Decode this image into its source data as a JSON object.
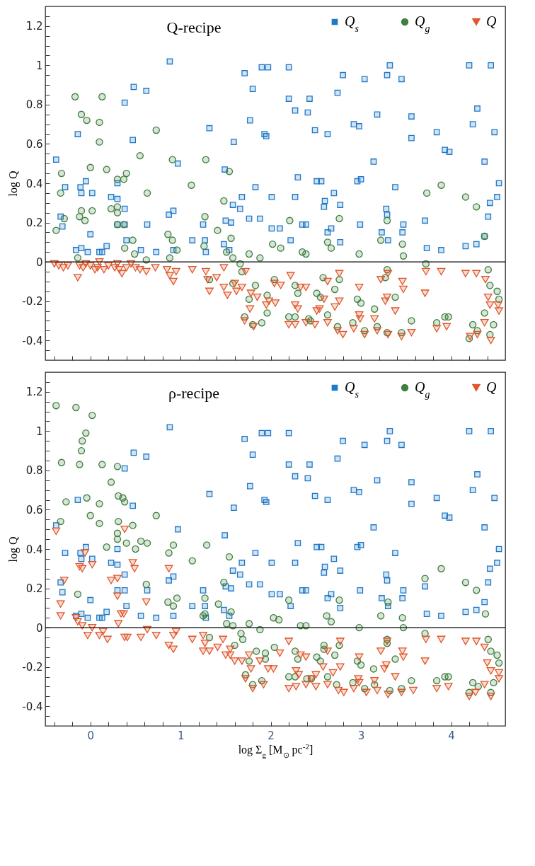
{
  "chart_data": [
    {
      "type": "scatter",
      "title": "Q-recipe",
      "ylabel": "log Q",
      "xlim": [
        -0.5,
        4.6
      ],
      "ylim": [
        -0.5,
        1.3
      ],
      "xticks": [
        {
          "value": -0.4,
          "label": null
        },
        {
          "value": -0.2,
          "label": null
        },
        0,
        {
          "value": 0.2,
          "label": null
        },
        {
          "value": 0.4,
          "label": null
        },
        {
          "value": 0.6,
          "label": null
        },
        {
          "value": 0.8,
          "label": null
        },
        1,
        {
          "value": 1.2,
          "label": null
        },
        {
          "value": 1.4,
          "label": null
        },
        {
          "value": 1.6,
          "label": null
        },
        {
          "value": 1.8,
          "label": null
        },
        2,
        {
          "value": 2.2,
          "label": null
        },
        {
          "value": 2.4,
          "label": null
        },
        {
          "value": 2.6,
          "label": null
        },
        {
          "value": 2.8,
          "label": null
        },
        3,
        {
          "value": 3.2,
          "label": null
        },
        {
          "value": 3.4,
          "label": null
        },
        {
          "value": 3.6,
          "label": null
        },
        {
          "value": 3.8,
          "label": null
        },
        4,
        {
          "value": 4.2,
          "label": null
        },
        {
          "value": 4.4,
          "label": null
        }
      ],
      "yticks": [
        {
          "value": -0.45,
          "label": null
        },
        -0.4,
        {
          "value": -0.35,
          "label": null
        },
        {
          "value": -0.3,
          "label": null
        },
        {
          "value": -0.25,
          "label": null
        },
        -0.2,
        {
          "value": -0.15,
          "label": null
        },
        {
          "value": -0.1,
          "label": null
        },
        {
          "value": -0.05,
          "label": null
        },
        0,
        {
          "value": 0.05,
          "label": null
        },
        {
          "value": 0.1,
          "label": null
        },
        {
          "value": 0.15,
          "label": null
        },
        0.2,
        {
          "value": 0.25,
          "label": null
        },
        {
          "value": 0.3,
          "label": null
        },
        {
          "value": 0.35,
          "label": null
        },
        0.4,
        {
          "value": 0.45,
          "label": null
        },
        {
          "value": 0.5,
          "label": null
        },
        {
          "value": 0.55,
          "label": null
        },
        0.6,
        {
          "value": 0.65,
          "label": null
        },
        {
          "value": 0.7,
          "label": null
        },
        {
          "value": 0.75,
          "label": null
        },
        0.8,
        {
          "value": 0.85,
          "label": null
        },
        {
          "value": 0.9,
          "label": null
        },
        {
          "value": 0.95,
          "label": null
        },
        1,
        {
          "value": 1.05,
          "label": null
        },
        {
          "value": 1.1,
          "label": null
        },
        {
          "value": 1.15,
          "label": null
        },
        1.2,
        {
          "value": 1.25,
          "label": null
        }
      ],
      "tick_labels": "y",
      "legend": "top right",
      "ref_lines": [
        {
          "axis": "y",
          "value": 0,
          "color": "#000000"
        }
      ],
      "series": [
        {
          "name": "Q$_{s}$",
          "color": "#1f78c8",
          "marker": "square",
          "x": [
            -0.38,
            -0.14,
            -0.28,
            -0.11,
            -0.05,
            -0.1,
            0.02,
            -0.33,
            -0.31,
            0,
            -0.16,
            -0.1,
            -0.03,
            0.1,
            0.13,
            0.18,
            0.23,
            0.3,
            0.3,
            0.38,
            0.3,
            0.38,
            0.4,
            0.38,
            0.48,
            0.62,
            0.47,
            0.88,
            0.97,
            0.87,
            0.92,
            0.63,
            0.56,
            0.73,
            0.92,
            1.13,
            1.27,
            1.25,
            1.28,
            1.32,
            1.48,
            1.54,
            1.5,
            1.56,
            1.49,
            1.58,
            1.66,
            1.68,
            1.76,
            1.88,
            1.83,
            1.59,
            1.77,
            1.8,
            1.71,
            1.9,
            1.97,
            1.93,
            1.95,
            2.01,
            2.01,
            2.2,
            3.32,
            4.2,
            4.44,
            2.8,
            3.04,
            3.29,
            3.45,
            2.2,
            2.43,
            2.74,
            2.27,
            2.41,
            3.18,
            3.56,
            4.29,
            2.49,
            2.63,
            2.92,
            2.98,
            3.56,
            3.84,
            4.24,
            4.48,
            3.93,
            3.98,
            3.14,
            4.37,
            2.3,
            2.51,
            2.56,
            2.7,
            2.96,
            3.0,
            3.38,
            4.53,
            4.51,
            4.43,
            2.27,
            2.6,
            2.59,
            2.77,
            3.28,
            3.29,
            3.71,
            4.41,
            2.1,
            2.35,
            2.39,
            2.67,
            2.63,
            2.99,
            3.47,
            3.23,
            3.46,
            2.22,
            2.77,
            3.3,
            3.73,
            3.89,
            4.16,
            4.28,
            4.37
          ],
          "values": [
            0.52,
            0.65,
            0.38,
            0.38,
            0.41,
            0.35,
            0.35,
            0.23,
            0.18,
            0.14,
            0.06,
            0.07,
            0.05,
            0.05,
            0.05,
            0.08,
            0.33,
            0.32,
            0.4,
            0.27,
            0.19,
            0.19,
            0.11,
            0.81,
            0.89,
            0.87,
            0.62,
            1.02,
            0.5,
            0.24,
            0.26,
            0.19,
            0.06,
            0.05,
            0.06,
            0.11,
            0.11,
            0.19,
            0.05,
            0.68,
            0.09,
            0.06,
            0.21,
            0.2,
            0.47,
            0.29,
            0.27,
            0.33,
            0.22,
            0.22,
            0.38,
            0.61,
            0.72,
            0.88,
            0.96,
            0.99,
            0.99,
            0.65,
            0.64,
            0.33,
            0.17,
            0.99,
            1.0,
            1.0,
            1.0,
            0.95,
            0.93,
            0.95,
            0.93,
            0.83,
            0.83,
            0.86,
            0.77,
            0.76,
            0.75,
            0.74,
            0.78,
            0.67,
            0.65,
            0.7,
            0.69,
            0.63,
            0.66,
            0.7,
            0.66,
            0.57,
            0.56,
            0.51,
            0.51,
            0.43,
            0.41,
            0.41,
            0.35,
            0.41,
            0.42,
            0.38,
            0.4,
            0.33,
            0.3,
            0.33,
            0.31,
            0.28,
            0.29,
            0.27,
            0.24,
            0.21,
            0.23,
            0.17,
            0.19,
            0.19,
            0.17,
            0.15,
            0.19,
            0.19,
            0.15,
            0.15,
            0.11,
            0.1,
            0.11,
            0.07,
            0.06,
            0.08,
            0.09,
            0.13
          ]
        },
        {
          "name": "Q$_{g}$",
          "color": "#3f7f3f",
          "marker": "circle",
          "x": [
            -0.17,
            0.13,
            -0.1,
            -0.04,
            0.1,
            0.1,
            0.73,
            0.55,
            0,
            0.18,
            0.91,
            1.28,
            -0.32,
            0.4,
            0.37,
            0.3,
            1.12,
            1.54,
            -0.33,
            0.63,
            1.48,
            -0.1,
            0.02,
            -0.29,
            -0.12,
            -0.06,
            0.23,
            0.3,
            0.3,
            0.3,
            0.37,
            -0.38,
            1.27,
            1.41,
            0.86,
            0.91,
            0.47,
            0.38,
            0.49,
            0.62,
            0.88,
            0.96,
            -0.14,
            1.26,
            1.56,
            1.51,
            1.58,
            1.76,
            1.88,
            1.66,
            1.68,
            2.02,
            1.32,
            1.83,
            1.58,
            1.96,
            1.76,
            1.96,
            1.71,
            1.8,
            1.9,
            2.21,
            2.76,
            3.29,
            3.73,
            3.89,
            4.16,
            4.28,
            4.37,
            2.11,
            2.35,
            2.39,
            2.63,
            2.67,
            2.98,
            3.22,
            3.46,
            3.47,
            3.72,
            3.29,
            3.27,
            4.41,
            4.43,
            4.51,
            4.53,
            2.04,
            2.27,
            2.3,
            2.58,
            2.76,
            2.71,
            2.51,
            2.55,
            2.96,
            3.0,
            3.38,
            3.15,
            2.63,
            2.2,
            2.27,
            2.42,
            2.44,
            3.56,
            3.84,
            3.93,
            3.97,
            4.37,
            4.47,
            2.74,
            2.91,
            3.04,
            3.18,
            3.29,
            3.45,
            4.24,
            4.29,
            4.2,
            4.43
          ],
          "values": [
            0.84,
            0.84,
            0.75,
            0.72,
            0.71,
            0.61,
            0.67,
            0.54,
            0.48,
            0.47,
            0.52,
            0.52,
            0.45,
            0.45,
            0.42,
            0.42,
            0.39,
            0.46,
            0.35,
            0.35,
            0.31,
            0.26,
            0.26,
            0.22,
            0.23,
            0.21,
            0.27,
            0.28,
            0.25,
            0.19,
            0.19,
            0.16,
            0.23,
            0.16,
            0.14,
            0.11,
            0.11,
            0.07,
            0.04,
            0.01,
            0.02,
            0.06,
            0.02,
            0.08,
            0.12,
            0.05,
            0.02,
            0.04,
            0.02,
            -0.01,
            -0.05,
            0.09,
            -0.09,
            -0.12,
            -0.11,
            -0.17,
            -0.19,
            -0.26,
            -0.28,
            -0.32,
            -0.31,
            0.21,
            0.22,
            0.21,
            0.35,
            0.39,
            0.33,
            0.28,
            0.13,
            0.07,
            0.05,
            0.04,
            0.1,
            0.07,
            0.04,
            0.11,
            0.09,
            0.03,
            -0.01,
            -0.04,
            -0.08,
            -0.04,
            -0.12,
            -0.15,
            -0.19,
            -0.09,
            -0.12,
            -0.16,
            -0.08,
            -0.09,
            -0.14,
            -0.16,
            -0.18,
            -0.19,
            -0.21,
            -0.18,
            -0.24,
            -0.27,
            -0.28,
            -0.28,
            -0.29,
            -0.3,
            -0.3,
            -0.31,
            -0.28,
            -0.28,
            -0.26,
            -0.32,
            -0.33,
            -0.31,
            -0.35,
            -0.33,
            -0.36,
            -0.36,
            -0.32,
            -0.35,
            -0.39,
            -0.37
          ]
        },
        {
          "name": "Q",
          "color": "#e0572a",
          "marker": "triangle",
          "x": [
            -0.4,
            -0.35,
            -0.3,
            -0.25,
            -0.14,
            -0.12,
            -0.08,
            -0.05,
            0,
            0.05,
            0.08,
            0.1,
            0.15,
            0.2,
            0.27,
            0.3,
            0.32,
            0.35,
            0.4,
            0.45,
            0.5,
            0.55,
            0.62,
            0.72,
            0.85,
            0.88,
            0.92,
            0.95,
            1.13,
            1.28,
            1.3,
            1.32,
            1.4,
            1.48,
            1.48,
            1.52,
            1.6,
            1.62,
            1.68,
            1.72,
            1.78,
            1.77,
            1.85,
            1.95,
            1.98,
            1.71,
            1.81,
            2.22,
            2.11,
            2.04,
            2.05,
            2.39,
            2.33,
            2.27,
            2.3,
            2.63,
            2.76,
            2.59,
            2.76,
            2.71,
            2.54,
            2.51,
            2.98,
            2.98,
            2.99,
            3.15,
            3.22,
            3.3,
            3.29,
            3.27,
            3.46,
            3.47,
            3.38,
            3.72,
            3.89,
            3.71,
            4.16,
            4.28,
            4.38,
            4.41,
            4.43,
            4.53,
            4.52,
            4.37,
            2.2,
            2.27,
            2.39,
            2.49,
            2.63,
            2.74,
            2.8,
            2.92,
            3.04,
            3.18,
            3.3,
            3.45,
            3.56,
            3.84,
            3.95,
            4.21,
            4.29,
            4.44
          ],
          "values": [
            -0.01,
            -0.02,
            -0.03,
            -0.02,
            -0.08,
            -0.02,
            -0.03,
            -0.01,
            -0.02,
            -0.04,
            -0.03,
            0,
            -0.04,
            -0.02,
            -0.03,
            -0.01,
            -0.04,
            -0.06,
            -0.03,
            -0.01,
            -0.03,
            -0.04,
            -0.05,
            -0.03,
            -0.04,
            -0.07,
            -0.1,
            -0.05,
            -0.04,
            -0.05,
            -0.09,
            -0.15,
            -0.08,
            -0.03,
            -0.13,
            -0.17,
            -0.11,
            -0.15,
            -0.13,
            -0.05,
            -0.16,
            -0.24,
            -0.18,
            -0.22,
            -0.2,
            -0.3,
            -0.33,
            -0.07,
            -0.12,
            -0.11,
            -0.21,
            -0.13,
            -0.13,
            -0.22,
            -0.24,
            -0.1,
            -0.06,
            -0.19,
            -0.2,
            -0.23,
            -0.24,
            -0.25,
            -0.13,
            -0.27,
            -0.29,
            -0.29,
            -0.09,
            -0.06,
            -0.18,
            -0.2,
            -0.1,
            -0.14,
            -0.25,
            -0.05,
            -0.05,
            -0.16,
            -0.06,
            -0.06,
            -0.09,
            -0.18,
            -0.22,
            -0.25,
            -0.22,
            -0.31,
            -0.32,
            -0.32,
            -0.31,
            -0.32,
            -0.31,
            -0.35,
            -0.37,
            -0.34,
            -0.37,
            -0.35,
            -0.37,
            -0.38,
            -0.36,
            -0.34,
            -0.33,
            -0.38,
            -0.37,
            -0.4
          ]
        }
      ]
    },
    {
      "type": "scatter",
      "title": "ρ-recipe",
      "ylabel": "log Q",
      "xlabel": "log Σ$_{g}$ [M$_{⊙}$ pc$^{-2}$]",
      "xlim": [
        -0.5,
        4.6
      ],
      "ylim": [
        -0.5,
        1.3
      ],
      "xticks": [
        {
          "value": -0.4,
          "label": null
        },
        {
          "value": -0.2,
          "label": null
        },
        0,
        {
          "value": 0.2,
          "label": null
        },
        {
          "value": 0.4,
          "label": null
        },
        {
          "value": 0.6,
          "label": null
        },
        {
          "value": 0.8,
          "label": null
        },
        1,
        {
          "value": 1.2,
          "label": null
        },
        {
          "value": 1.4,
          "label": null
        },
        {
          "value": 1.6,
          "label": null
        },
        {
          "value": 1.8,
          "label": null
        },
        2,
        {
          "value": 2.2,
          "label": null
        },
        {
          "value": 2.4,
          "label": null
        },
        {
          "value": 2.6,
          "label": null
        },
        {
          "value": 2.8,
          "label": null
        },
        3,
        {
          "value": 3.2,
          "label": null
        },
        {
          "value": 3.4,
          "label": null
        },
        {
          "value": 3.6,
          "label": null
        },
        {
          "value": 3.8,
          "label": null
        },
        4,
        {
          "value": 4.2,
          "label": null
        },
        {
          "value": 4.4,
          "label": null
        }
      ],
      "yticks": [
        {
          "value": -0.45,
          "label": null
        },
        -0.4,
        {
          "value": -0.35,
          "label": null
        },
        {
          "value": -0.3,
          "label": null
        },
        {
          "value": -0.25,
          "label": null
        },
        -0.2,
        {
          "value": -0.15,
          "label": null
        },
        {
          "value": -0.1,
          "label": null
        },
        {
          "value": -0.05,
          "label": null
        },
        0,
        {
          "value": 0.05,
          "label": null
        },
        {
          "value": 0.1,
          "label": null
        },
        {
          "value": 0.15,
          "label": null
        },
        0.2,
        {
          "value": 0.25,
          "label": null
        },
        {
          "value": 0.3,
          "label": null
        },
        {
          "value": 0.35,
          "label": null
        },
        0.4,
        {
          "value": 0.45,
          "label": null
        },
        {
          "value": 0.5,
          "label": null
        },
        {
          "value": 0.55,
          "label": null
        },
        0.6,
        {
          "value": 0.65,
          "label": null
        },
        {
          "value": 0.7,
          "label": null
        },
        {
          "value": 0.75,
          "label": null
        },
        0.8,
        {
          "value": 0.85,
          "label": null
        },
        {
          "value": 0.9,
          "label": null
        },
        {
          "value": 0.95,
          "label": null
        },
        1,
        {
          "value": 1.05,
          "label": null
        },
        {
          "value": 1.1,
          "label": null
        },
        {
          "value": 1.15,
          "label": null
        },
        1.2,
        {
          "value": 1.25,
          "label": null
        }
      ],
      "legend": "top right",
      "ref_lines": [
        {
          "axis": "y",
          "value": 0,
          "color": "#000000"
        }
      ],
      "series": [
        {
          "name": "Q$_{s}$",
          "color": "#1f78c8",
          "marker": "square",
          "x": [
            -0.38,
            -0.14,
            -0.28,
            -0.11,
            -0.05,
            -0.1,
            0.02,
            -0.33,
            -0.31,
            0,
            -0.16,
            -0.1,
            -0.03,
            0.1,
            0.13,
            0.18,
            0.23,
            0.3,
            0.3,
            0.38,
            0.3,
            0.38,
            0.4,
            0.38,
            0.48,
            0.62,
            0.47,
            0.88,
            0.97,
            0.87,
            0.92,
            0.63,
            0.56,
            0.73,
            0.92,
            1.13,
            1.27,
            1.25,
            1.28,
            1.32,
            1.48,
            1.54,
            1.5,
            1.56,
            1.49,
            1.58,
            1.66,
            1.68,
            1.76,
            1.88,
            1.83,
            1.59,
            1.77,
            1.8,
            1.71,
            1.9,
            1.97,
            1.93,
            1.95,
            2.01,
            2.01,
            2.2,
            3.32,
            4.2,
            4.44,
            2.8,
            3.04,
            3.29,
            3.45,
            2.2,
            2.43,
            2.74,
            2.27,
            2.41,
            3.18,
            3.56,
            4.29,
            2.49,
            2.63,
            2.92,
            2.98,
            3.56,
            3.84,
            4.24,
            4.48,
            3.93,
            3.98,
            3.14,
            4.37,
            2.3,
            2.51,
            2.56,
            2.7,
            2.96,
            3.0,
            3.38,
            4.53,
            4.51,
            4.43,
            2.27,
            2.6,
            2.59,
            2.77,
            3.28,
            3.29,
            3.71,
            4.41,
            2.1,
            2.35,
            2.39,
            2.67,
            2.63,
            2.99,
            3.47,
            3.23,
            3.46,
            2.22,
            2.77,
            3.3,
            3.73,
            3.89,
            4.16,
            4.28,
            4.37
          ],
          "values": [
            0.52,
            0.65,
            0.38,
            0.38,
            0.41,
            0.35,
            0.35,
            0.23,
            0.18,
            0.14,
            0.06,
            0.07,
            0.05,
            0.05,
            0.05,
            0.08,
            0.33,
            0.32,
            0.4,
            0.27,
            0.19,
            0.19,
            0.11,
            0.81,
            0.89,
            0.87,
            0.62,
            1.02,
            0.5,
            0.24,
            0.26,
            0.19,
            0.06,
            0.05,
            0.06,
            0.11,
            0.11,
            0.19,
            0.05,
            0.68,
            0.09,
            0.06,
            0.21,
            0.2,
            0.47,
            0.29,
            0.27,
            0.33,
            0.22,
            0.22,
            0.38,
            0.61,
            0.72,
            0.88,
            0.96,
            0.99,
            0.99,
            0.65,
            0.64,
            0.33,
            0.17,
            0.99,
            1.0,
            1.0,
            1.0,
            0.95,
            0.93,
            0.95,
            0.93,
            0.83,
            0.83,
            0.86,
            0.77,
            0.76,
            0.75,
            0.74,
            0.78,
            0.67,
            0.65,
            0.7,
            0.69,
            0.63,
            0.66,
            0.7,
            0.66,
            0.57,
            0.56,
            0.51,
            0.51,
            0.43,
            0.41,
            0.41,
            0.35,
            0.41,
            0.42,
            0.38,
            0.4,
            0.33,
            0.3,
            0.33,
            0.31,
            0.28,
            0.29,
            0.27,
            0.24,
            0.21,
            0.23,
            0.17,
            0.19,
            0.19,
            0.17,
            0.15,
            0.19,
            0.19,
            0.15,
            0.15,
            0.11,
            0.1,
            0.11,
            0.07,
            0.06,
            0.08,
            0.09,
            0.13
          ]
        },
        {
          "name": "Q$_{g}$",
          "color": "#3f7f3f",
          "marker": "circle",
          "x": [
            -0.38,
            -0.16,
            0.02,
            -0.05,
            -0.09,
            -0.1,
            -0.32,
            -0.12,
            0.13,
            0.3,
            0.23,
            -0.27,
            -0.04,
            0.1,
            0.31,
            0.36,
            0.38,
            -0.33,
            0,
            0.1,
            0.31,
            0.47,
            0.73,
            0.3,
            0.3,
            0.18,
            0.4,
            0.5,
            0.56,
            0.63,
            0.92,
            0.87,
            1.29,
            1.13,
            1.54,
            -0.14,
            0.62,
            0.86,
            0.92,
            0.96,
            1.27,
            1.25,
            1.27,
            1.48,
            1.42,
            1.56,
            1.51,
            1.58,
            1.76,
            1.88,
            2.03,
            1.32,
            1.6,
            1.67,
            1.69,
            1.84,
            1.94,
            1.94,
            1.76,
            1.72,
            1.8,
            1.9,
            2.2,
            2.76,
            3.3,
            3.71,
            3.89,
            4.16,
            4.28,
            4.38,
            2.09,
            2.33,
            2.39,
            2.62,
            2.67,
            2.98,
            3.22,
            3.46,
            3.47,
            3.71,
            3.29,
            3.29,
            4.41,
            4.44,
            4.51,
            4.53,
            2.04,
            2.27,
            2.3,
            2.59,
            2.59,
            2.76,
            2.71,
            2.51,
            2.55,
            2.96,
            3.0,
            3.38,
            3.14,
            2.63,
            2.2,
            2.27,
            2.4,
            2.45,
            3.56,
            3.84,
            3.93,
            3.97,
            4.24,
            4.47,
            2.73,
            2.91,
            3.04,
            3.15,
            3.32,
            3.45,
            4.2,
            4.3,
            4.44
          ],
          "values": [
            1.13,
            1.12,
            1.08,
            0.99,
            0.95,
            0.9,
            0.84,
            0.83,
            0.83,
            0.82,
            0.74,
            0.64,
            0.66,
            0.63,
            0.67,
            0.66,
            0.64,
            0.54,
            0.57,
            0.53,
            0.54,
            0.52,
            0.57,
            0.48,
            0.45,
            0.41,
            0.43,
            0.4,
            0.44,
            0.43,
            0.42,
            0.38,
            0.42,
            0.34,
            0.36,
            0.17,
            0.22,
            0.13,
            0.11,
            0.15,
            0.15,
            0.06,
            0.07,
            0.23,
            0.12,
            0.08,
            0.02,
            0.01,
            0.02,
            -0.01,
            0.05,
            -0.05,
            -0.09,
            -0.03,
            -0.06,
            -0.12,
            -0.13,
            -0.16,
            -0.17,
            -0.24,
            -0.29,
            -0.27,
            0.14,
            0.14,
            0.13,
            0.25,
            0.3,
            0.23,
            0.19,
            0.07,
            0.04,
            0.01,
            0.01,
            0.06,
            0.03,
            0,
            0.06,
            0.05,
            0,
            -0.03,
            -0.06,
            -0.08,
            -0.06,
            -0.12,
            -0.14,
            -0.18,
            -0.1,
            -0.12,
            -0.16,
            -0.09,
            -0.11,
            -0.09,
            -0.14,
            -0.15,
            -0.17,
            -0.17,
            -0.19,
            -0.16,
            -0.21,
            -0.25,
            -0.25,
            -0.25,
            -0.26,
            -0.26,
            -0.27,
            -0.27,
            -0.25,
            -0.25,
            -0.28,
            -0.28,
            -0.29,
            -0.28,
            -0.31,
            -0.29,
            -0.32,
            -0.31,
            -0.33,
            -0.3,
            -0.33
          ]
        },
        {
          "name": "Q",
          "color": "#e0572a",
          "marker": "triangle",
          "x": [
            -0.38,
            0.38,
            -0.06,
            -0.12,
            -0.09,
            0.02,
            0.47,
            0.49,
            0.87,
            -0.29,
            0.23,
            0.3,
            -0.33,
            -0.33,
            0.3,
            0.34,
            0.37,
            0.62,
            0.31,
            -0.16,
            -0.14,
            -0.09,
            -0.03,
            0.02,
            0.1,
            0.19,
            0.14,
            0.38,
            0.41,
            0.56,
            0.63,
            0.73,
            0.92,
            0.95,
            0.87,
            0.92,
            1.13,
            1.25,
            1.27,
            1.25,
            1.32,
            1.41,
            1.47,
            1.5,
            1.55,
            1.55,
            1.6,
            1.68,
            1.76,
            1.78,
            1.72,
            1.8,
            1.92,
            1.97,
            1.88,
            2.2,
            2.1,
            2.03,
            2.33,
            2.39,
            2.28,
            2.31,
            2.77,
            2.63,
            2.58,
            2.77,
            2.69,
            2.5,
            2.45,
            2.98,
            2.97,
            2.98,
            3.15,
            3.22,
            3.29,
            3.28,
            3.26,
            3.46,
            3.47,
            3.38,
            3.72,
            3.89,
            3.71,
            4.16,
            4.28,
            4.37,
            4.4,
            4.44,
            4.53,
            4.53,
            4.37,
            2.2,
            2.28,
            2.39,
            2.5,
            2.63,
            2.75,
            2.81,
            2.92,
            3.06,
            3.18,
            3.3,
            3.45,
            3.58,
            3.84,
            3.97,
            4.2,
            4.27,
            4.44
          ],
          "values": [
            0.49,
            0.5,
            0.38,
            0.31,
            0.3,
            0.32,
            0.33,
            0.3,
            0.3,
            0.24,
            0.24,
            0.25,
            0.12,
            0.06,
            0.16,
            0.07,
            0.07,
            0.13,
            0.02,
            0.05,
            0.03,
            0.01,
            -0.04,
            0,
            -0.04,
            -0.06,
            -0.02,
            -0.05,
            -0.05,
            -0.05,
            -0.01,
            -0.04,
            -0.04,
            -0.02,
            -0.09,
            -0.11,
            -0.06,
            -0.04,
            -0.08,
            -0.12,
            -0.12,
            -0.1,
            -0.06,
            -0.14,
            -0.14,
            -0.11,
            -0.17,
            -0.17,
            -0.14,
            -0.21,
            -0.26,
            -0.31,
            -0.29,
            -0.21,
            -0.17,
            -0.07,
            -0.13,
            -0.21,
            -0.14,
            -0.15,
            -0.22,
            -0.24,
            -0.07,
            -0.12,
            -0.2,
            -0.2,
            -0.23,
            -0.24,
            -0.26,
            -0.15,
            -0.26,
            -0.28,
            -0.27,
            -0.12,
            -0.07,
            -0.19,
            -0.21,
            -0.12,
            -0.15,
            -0.25,
            -0.06,
            -0.06,
            -0.17,
            -0.07,
            -0.07,
            -0.1,
            -0.18,
            -0.22,
            -0.23,
            -0.26,
            -0.29,
            -0.31,
            -0.3,
            -0.29,
            -0.3,
            -0.29,
            -0.32,
            -0.33,
            -0.31,
            -0.33,
            -0.32,
            -0.34,
            -0.33,
            -0.32,
            -0.31,
            -0.3,
            -0.35,
            -0.33,
            -0.35
          ]
        }
      ]
    }
  ]
}
